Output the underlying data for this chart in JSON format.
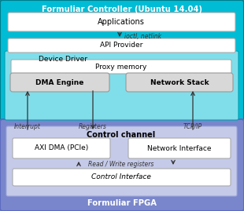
{
  "title_controller": "Formuliar Controller (Ubuntu 14.04)",
  "title_fpga": "Formuliar FPGA",
  "controller_bg": "#00BCD4",
  "fpga_bg": "#7986CB",
  "fpga_inner_bg": "#C5CAE9",
  "device_driver_bg": "#80DEEA",
  "white": "#FFFFFF",
  "gray_box": "#D8D8D8",
  "boxes": {
    "applications": "Applications",
    "api_provider": "API Provider",
    "device_driver": "Device Driver",
    "proxy_memory": "Proxy memory",
    "dma_engine": "DMA Engine",
    "network_stack": "Network Stack",
    "control_channel": "Control channel",
    "axi_dma": "AXI DMA (PCIe)",
    "network_interface": "Network Interface",
    "control_interface": "Control Interface"
  },
  "labels": {
    "ioctl_netlink": "ioctl, netlink",
    "interrupt": "Interrupt",
    "registers": "Registers",
    "tcpip": "TCP/IP",
    "read_write": "Read / Write registers"
  }
}
